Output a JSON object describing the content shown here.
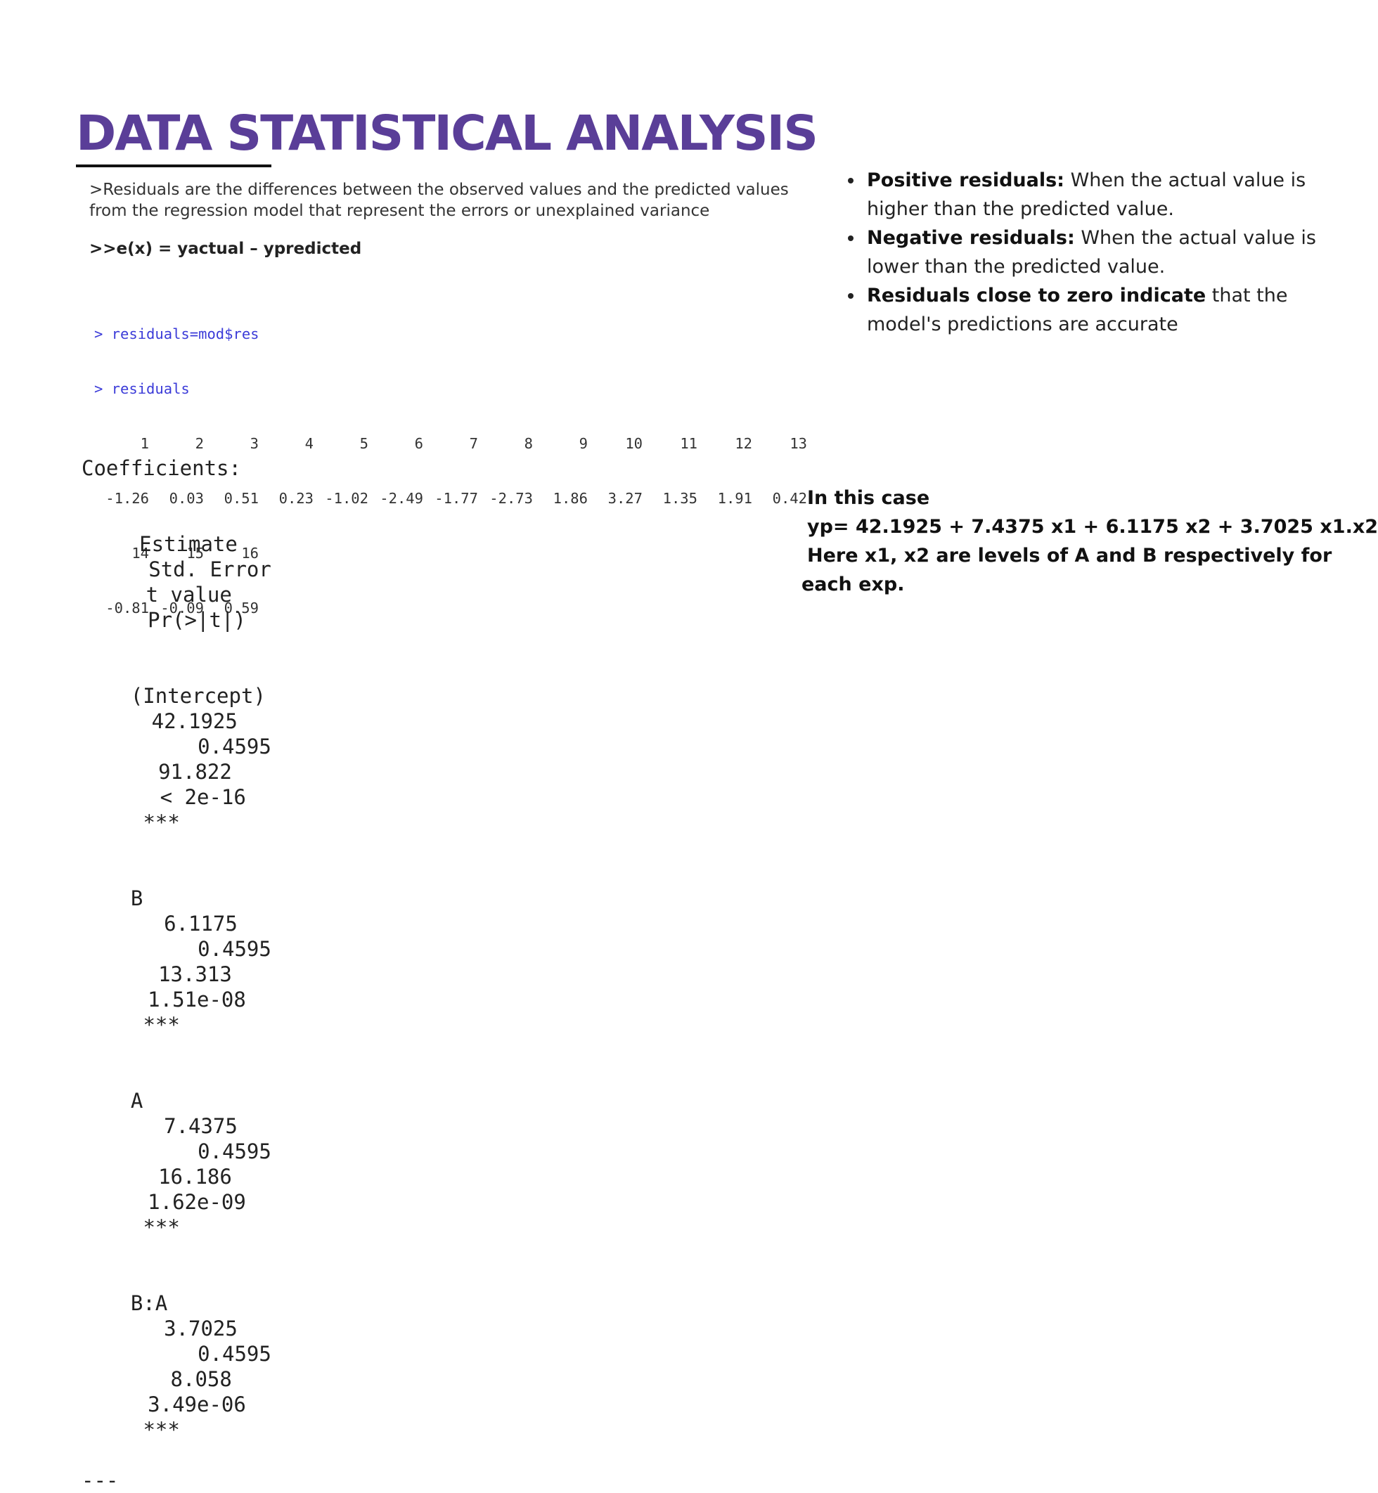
{
  "slide": {
    "title": "DATA STATISTICAL ANALYSIS",
    "accent_color": "#5a3e98"
  },
  "intro": {
    "line1": ">Residuals are the differences between the observed values and the predicted values",
    "line2": "from the regression model that represent the errors or unexplained variance",
    "formula": ">>e(x) = yactual – ypredicted"
  },
  "console": {
    "command1": "> residuals=mod$res",
    "command2": "> residuals",
    "row1_index": [
      "1",
      "2",
      "3",
      "4",
      "5",
      "6",
      "7",
      "8",
      "9",
      "10",
      "11",
      "12",
      "13"
    ],
    "row1_values": [
      "-1.26",
      "0.03",
      "0.51",
      "0.23",
      "-1.02",
      "-2.49",
      "-1.77",
      "-2.73",
      "1.86",
      "3.27",
      "1.35",
      "1.91",
      "0.42"
    ],
    "row2_index": [
      "14",
      "15",
      "16"
    ],
    "row2_values": [
      "-0.81",
      "-0.09",
      "0.59"
    ]
  },
  "coefficients": {
    "title": "Coefficients:",
    "headers": [
      "Estimate",
      "Std. Error",
      "t value",
      "Pr(>|t|)"
    ],
    "rows": [
      {
        "name": "(Intercept)",
        "estimate": "42.1925",
        "std_error": "0.4595",
        "t_value": "91.822",
        "p_value": "< 2e-16",
        "signif": "***"
      },
      {
        "name": "B",
        "estimate": "6.1175",
        "std_error": "0.4595",
        "t_value": "13.313",
        "p_value": "1.51e-08",
        "signif": "***"
      },
      {
        "name": "A",
        "estimate": "7.4375",
        "std_error": "0.4595",
        "t_value": "16.186",
        "p_value": "1.62e-09",
        "signif": "***"
      },
      {
        "name": "B:A",
        "estimate": "3.7025",
        "std_error": "0.4595",
        "t_value": "8.058",
        "p_value": "3.49e-06",
        "signif": "***"
      }
    ],
    "separator": "---"
  },
  "bullets": [
    {
      "bold": "Positive residuals:",
      "text": " When the actual value is higher than the predicted value."
    },
    {
      "bold": "Negative residuals:",
      "text": " When the actual value is lower than the predicted value."
    },
    {
      "bold": "Residuals close to zero indicate",
      "text": " that the model's predictions are accurate"
    }
  ],
  "case": {
    "line1": "In this case",
    "line2": "yp= 42.1925 + 7.4375 x1 + 6.1175 x2 + 3.7025 x1.x2",
    "line3": "Here x1, x2 are levels of A and B respectively for",
    "line4": "each exp."
  }
}
